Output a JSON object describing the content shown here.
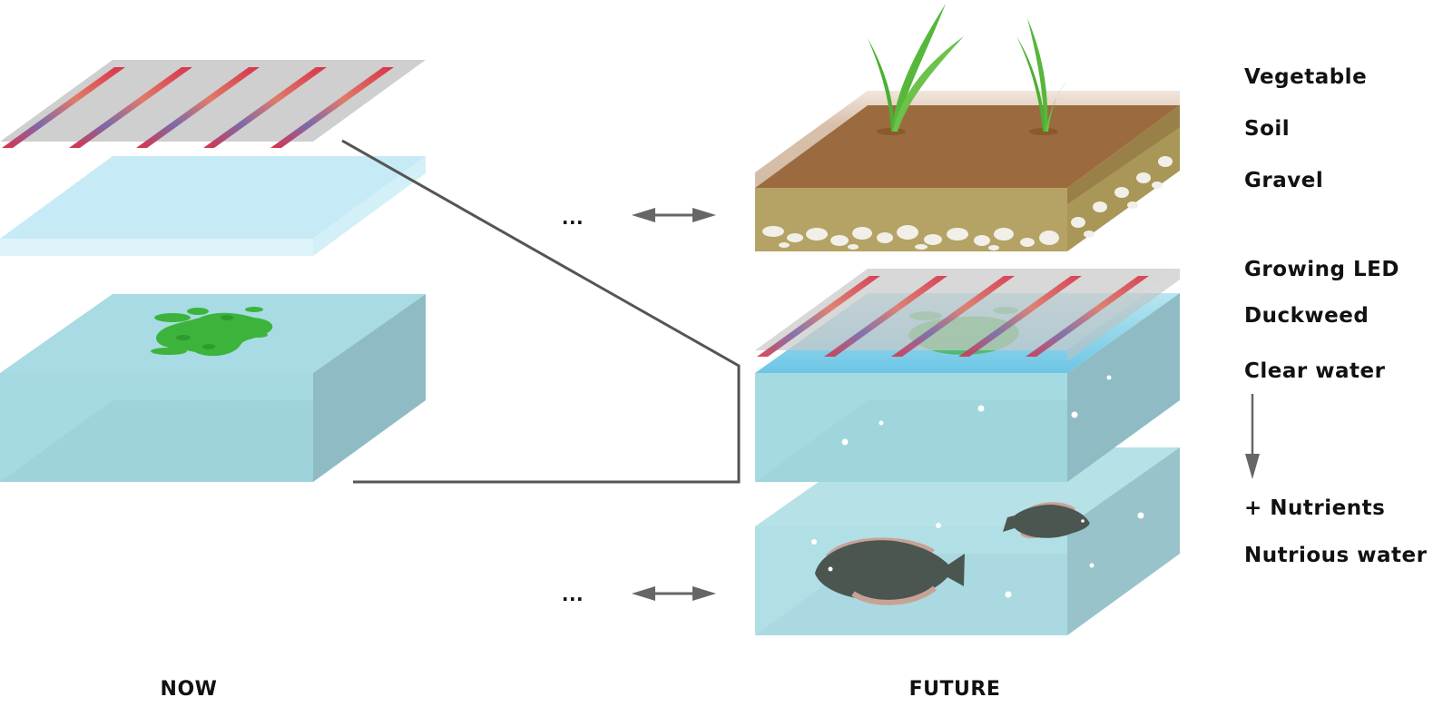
{
  "captions": {
    "now": "NOW",
    "future": "FUTURE"
  },
  "ellipsis": "...",
  "labels": {
    "vegetable": "Vegetable",
    "soil": "Soil",
    "gravel": "Gravel",
    "growing_led": "Growing LED",
    "duckweed": "Duckweed",
    "clear_water": "Clear water",
    "nutrients": "+ Nutrients",
    "nutrious_water": "Nutrious water"
  },
  "colors": {
    "water": "#a6dae2",
    "water_dark": "#8fbcc4",
    "soil": "#9b6b3f",
    "gravel": "#b5a365",
    "duckweed": "#3cb43c",
    "plant": "#4caf32",
    "fish": "#4b5651",
    "led_panel": "#cfcfcf",
    "connector": "#555555"
  }
}
